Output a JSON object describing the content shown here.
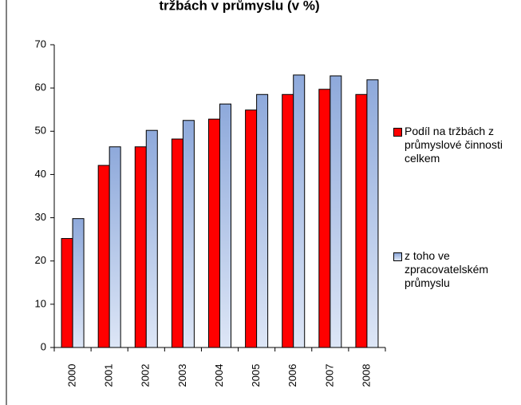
{
  "chart_data": {
    "type": "bar",
    "title": "tržbách v průmyslu (v %)",
    "categories": [
      "2000",
      "2001",
      "2002",
      "2003",
      "2004",
      "2005",
      "2006",
      "2007",
      "2008"
    ],
    "series": [
      {
        "name": "Podíl na tržbách z průmyslové činnosti celkem",
        "color": "#ff0000",
        "values": [
          25.2,
          42.1,
          46.4,
          48.2,
          52.8,
          54.9,
          58.5,
          59.7,
          58.5
        ]
      },
      {
        "name": "z toho ve zpracovatelském průmyslu",
        "color": "#8ea9db",
        "values": [
          29.8,
          46.4,
          50.2,
          52.5,
          56.3,
          58.5,
          63.0,
          62.8,
          61.9
        ]
      }
    ],
    "ylim": [
      0,
      70
    ],
    "yticks": [
      0,
      10,
      20,
      30,
      40,
      50,
      60,
      70
    ],
    "grid": false,
    "legend": "right"
  }
}
